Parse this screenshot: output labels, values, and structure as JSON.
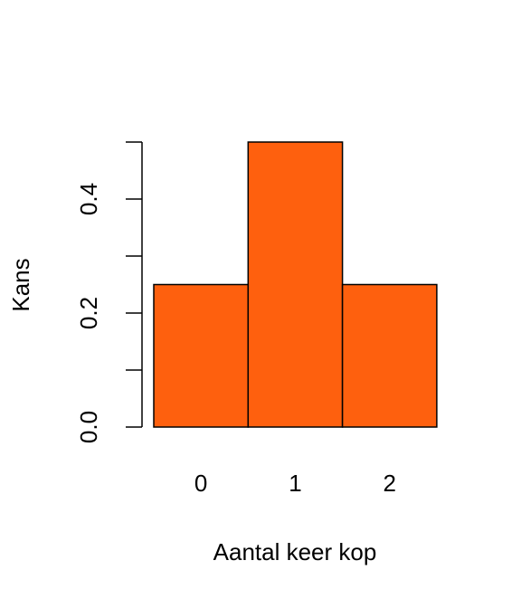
{
  "chart_data": {
    "type": "bar",
    "x_label": "Aantal keer kop",
    "y_label": "Kans",
    "categories": [
      "0",
      "1",
      "2"
    ],
    "values": [
      0.25,
      0.5,
      0.25
    ],
    "color": "#fe600e",
    "ylim": [
      0,
      0.5
    ],
    "yticks": [
      {
        "value": 0,
        "label": "0.0"
      },
      0.2,
      0.4
    ],
    "yminor_ticks": [
      0.1,
      0.3,
      0.5
    ]
  }
}
